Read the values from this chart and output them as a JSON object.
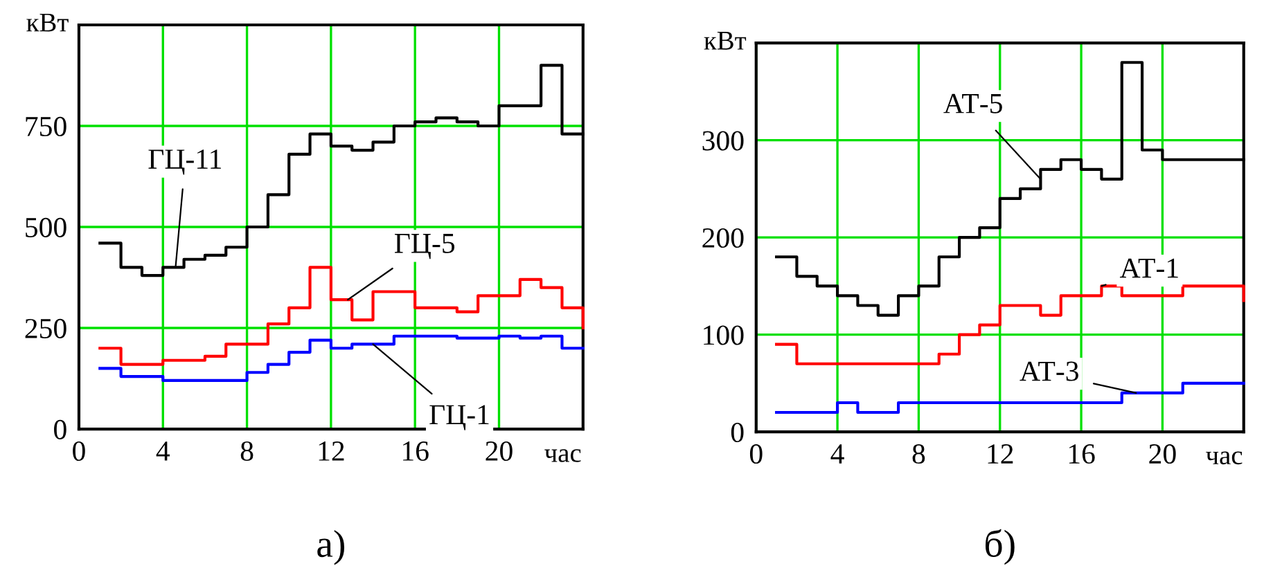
{
  "chart_data": [
    {
      "type": "step",
      "title": "а)",
      "xlabel": "час",
      "ylabel": "кВт",
      "x": [
        1,
        2,
        3,
        4,
        5,
        6,
        7,
        8,
        9,
        10,
        11,
        12,
        13,
        14,
        15,
        16,
        17,
        18,
        19,
        20,
        21,
        22,
        23,
        24
      ],
      "series": [
        {
          "color": "#000000",
          "values": [
            460,
            400,
            380,
            400,
            420,
            430,
            450,
            500,
            580,
            680,
            730,
            700,
            690,
            710,
            750,
            760,
            770,
            760,
            750,
            800,
            800,
            900,
            730,
            730
          ]
        },
        {
          "color": "#ff0000",
          "values": [
            200,
            160,
            160,
            170,
            170,
            180,
            210,
            210,
            260,
            300,
            400,
            320,
            270,
            340,
            340,
            300,
            300,
            290,
            330,
            330,
            370,
            350,
            300,
            250
          ]
        },
        {
          "color": "#0000ff",
          "values": [
            150,
            130,
            130,
            120,
            120,
            120,
            120,
            140,
            160,
            190,
            220,
            200,
            210,
            210,
            230,
            230,
            230,
            225,
            225,
            230,
            225,
            230,
            200,
            200
          ]
        }
      ],
      "annotations": [
        {
          "text": "ГЦ-11",
          "x": 4.6,
          "y": 400
        },
        {
          "text": "ГЦ-5",
          "x": 12.8,
          "y": 320
        },
        {
          "text": "ГЦ-1",
          "x": 14,
          "y": 210
        }
      ],
      "xlim": [
        0,
        24
      ],
      "ylim": [
        0,
        1000
      ],
      "xticks": [
        0,
        4,
        8,
        12,
        16,
        20
      ],
      "yticks": [
        0,
        250,
        500,
        750
      ],
      "grid": true
    },
    {
      "type": "step",
      "title": "б)",
      "xlabel": "час",
      "ylabel": "кВт",
      "x": [
        1,
        2,
        3,
        4,
        5,
        6,
        7,
        8,
        9,
        10,
        11,
        12,
        13,
        14,
        15,
        16,
        17,
        18,
        19,
        20,
        21,
        22,
        23,
        24
      ],
      "series": [
        {
          "color": "#000000",
          "values": [
            180,
            160,
            150,
            140,
            130,
            120,
            140,
            150,
            180,
            200,
            210,
            240,
            250,
            270,
            280,
            270,
            260,
            380,
            290,
            280,
            280,
            280,
            280,
            280
          ]
        },
        {
          "color": "#ff0000",
          "values": [
            90,
            70,
            70,
            70,
            70,
            70,
            70,
            70,
            80,
            100,
            110,
            130,
            130,
            120,
            140,
            140,
            150,
            140,
            140,
            140,
            150,
            150,
            150,
            135
          ]
        },
        {
          "color": "#0000ff",
          "values": [
            20,
            20,
            20,
            30,
            20,
            20,
            30,
            30,
            30,
            30,
            30,
            30,
            30,
            30,
            30,
            30,
            30,
            40,
            40,
            40,
            50,
            50,
            50,
            50
          ]
        }
      ],
      "annotations": [
        {
          "text": "АТ-5",
          "x": 14,
          "y": 260
        },
        {
          "text": "АТ-1",
          "x": 17,
          "y": 150
        },
        {
          "text": "АТ-3",
          "x": 18.7,
          "y": 40
        }
      ],
      "xlim": [
        0,
        24
      ],
      "ylim": [
        0,
        400
      ],
      "xticks": [
        0,
        4,
        8,
        12,
        16,
        20
      ],
      "yticks": [
        0,
        100,
        200,
        300
      ],
      "grid": true
    }
  ]
}
